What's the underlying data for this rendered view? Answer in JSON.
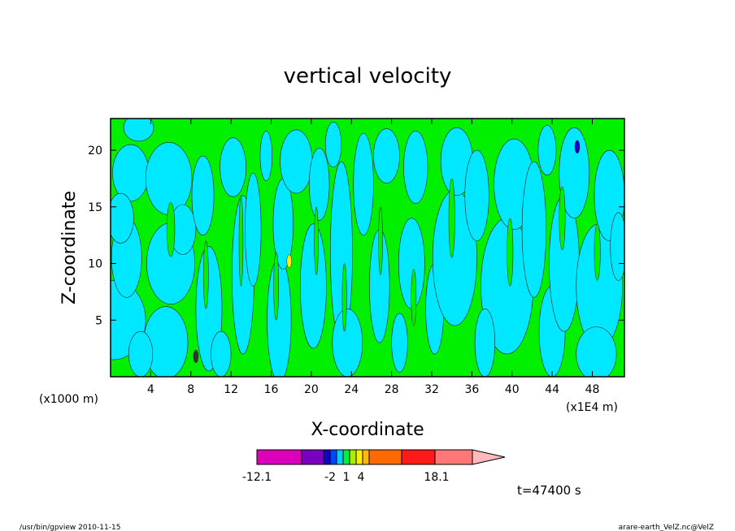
{
  "chart_data": {
    "type": "heatmap",
    "title": "vertical velocity",
    "xlabel": "X-coordinate",
    "ylabel": "Z-coordinate",
    "x_unit_left": "(x1000 m)",
    "x_unit_right": "(x1E4 m)",
    "xlim": [
      0,
      51.2
    ],
    "ylim": [
      0,
      22.8
    ],
    "x_ticks": [
      "4",
      "8",
      "12",
      "16",
      "20",
      "24",
      "28",
      "32",
      "36",
      "40",
      "44",
      "48"
    ],
    "x_tick_values": [
      4,
      8,
      12,
      16,
      20,
      24,
      28,
      32,
      36,
      40,
      44,
      48
    ],
    "y_ticks": [
      "5",
      "10",
      "15",
      "20"
    ],
    "y_tick_values": [
      5,
      10,
      15,
      20
    ],
    "time_label": "t=47400 s",
    "colorbar": {
      "colors": [
        "#dd00bb",
        "#7a00c0",
        "#1500c8",
        "#0044ff",
        "#00ccff",
        "#00ee44",
        "#aaee00",
        "#ffee00",
        "#ffbb00",
        "#ff6a00",
        "#ff1a1a",
        "#ff7777",
        "#ffbbbb"
      ],
      "labels": [
        "-12.1",
        "-2",
        "1",
        "4",
        "18.1"
      ],
      "label_values": [
        -12.1,
        -2,
        1,
        4,
        18.1
      ]
    },
    "dominant_colors": {
      "negative": "#00e8ff",
      "positive": "#00f000"
    }
  },
  "footer": {
    "left": "/usr/bin/gpview  2010-11-15",
    "right": "arare-earth_VelZ.nc@VelZ"
  }
}
